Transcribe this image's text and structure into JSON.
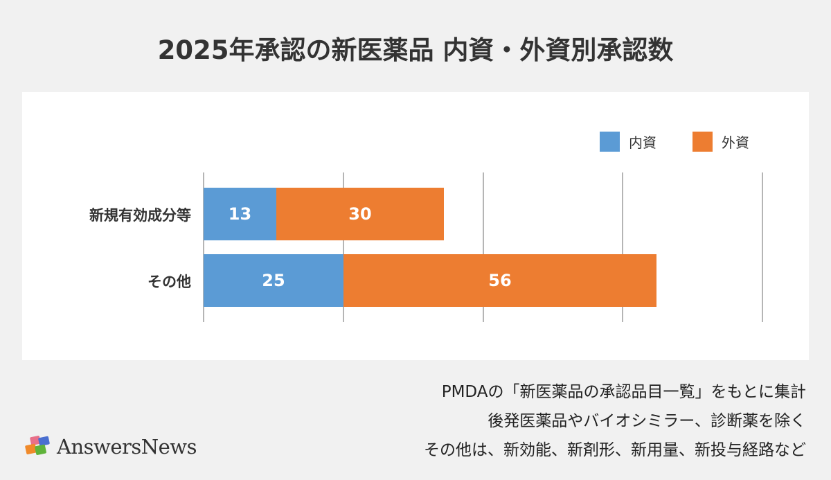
{
  "title": "2025年承認の新医薬品 内資・外資別承認数",
  "legend": [
    {
      "label": "内資",
      "color": "#5b9bd5"
    },
    {
      "label": "外資",
      "color": "#ed7d31"
    }
  ],
  "notes": [
    "PMDAの「新医薬品の承認品目一覧」をもとに集計",
    "後発医薬品やバイオシミラー、診断薬を除く",
    "その他は、新効能、新剤形、新用量、新投与経路など"
  ],
  "logo": {
    "text": "AnswersNews"
  },
  "chart_data": {
    "type": "bar",
    "orientation": "horizontal",
    "stacked": true,
    "title": "2025年承認の新医薬品 内資・外資別承認数",
    "categories": [
      "新規有効成分等",
      "その他"
    ],
    "series": [
      {
        "name": "内資",
        "values": [
          13,
          25
        ],
        "color": "#5b9bd5"
      },
      {
        "name": "外資",
        "values": [
          30,
          56
        ],
        "color": "#ed7d31"
      }
    ],
    "xlim": [
      0,
      100
    ],
    "gridlines": [
      0,
      25,
      50,
      75,
      100
    ],
    "grid": true,
    "legend_position": "top-right",
    "data_labels": true,
    "xlabel": "",
    "ylabel": ""
  }
}
